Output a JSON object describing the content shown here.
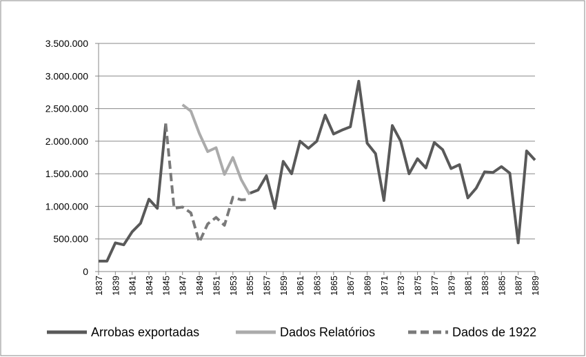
{
  "chart_data": {
    "type": "line",
    "x": [
      1837,
      1838,
      1839,
      1840,
      1841,
      1842,
      1843,
      1844,
      1845,
      1846,
      1847,
      1848,
      1849,
      1850,
      1851,
      1852,
      1853,
      1854,
      1855,
      1856,
      1857,
      1858,
      1859,
      1860,
      1861,
      1862,
      1863,
      1864,
      1865,
      1866,
      1867,
      1868,
      1869,
      1870,
      1871,
      1872,
      1873,
      1874,
      1875,
      1876,
      1877,
      1878,
      1879,
      1880,
      1881,
      1882,
      1883,
      1884,
      1885,
      1886,
      1887,
      1888,
      1889
    ],
    "xlim": [
      1837,
      1889
    ],
    "xticks": [
      1837,
      1839,
      1841,
      1843,
      1845,
      1847,
      1849,
      1851,
      1853,
      1855,
      1857,
      1859,
      1861,
      1863,
      1865,
      1867,
      1869,
      1871,
      1873,
      1875,
      1877,
      1879,
      1881,
      1883,
      1885,
      1887,
      1889
    ],
    "ylim": [
      0,
      3500000
    ],
    "yticks": [
      0,
      {
        "value": 500000,
        "label": "500.000"
      },
      {
        "value": 1000000,
        "label": "1.000.000"
      },
      {
        "value": 1500000,
        "label": "1.500.000"
      },
      {
        "value": 2000000,
        "label": "2.000.000"
      },
      {
        "value": 2500000,
        "label": "2.500.000"
      },
      {
        "value": 3000000,
        "label": "3.000.000"
      },
      {
        "value": 3500000,
        "label": "3.500.000"
      }
    ],
    "grid": true,
    "legend": "bottom",
    "series": [
      {
        "name": "Arrobas exportadas",
        "color": "#595959",
        "dashed": false,
        "values": [
          160000,
          160000,
          440000,
          410000,
          610000,
          740000,
          1110000,
          970000,
          2270000,
          null,
          null,
          null,
          null,
          null,
          null,
          null,
          null,
          null,
          1200000,
          1250000,
          1470000,
          970000,
          1690000,
          1500000,
          2000000,
          1890000,
          2000000,
          2400000,
          2110000,
          2170000,
          2220000,
          2920000,
          1970000,
          1810000,
          1090000,
          2240000,
          2000000,
          1500000,
          1730000,
          1590000,
          1980000,
          1870000,
          1580000,
          1640000,
          1130000,
          1280000,
          1530000,
          1520000,
          1610000,
          1510000,
          440000,
          1850000,
          1710000
        ]
      },
      {
        "name": "Dados Relatórios",
        "color": "#ababab",
        "dashed": false,
        "values": [
          null,
          null,
          null,
          null,
          null,
          null,
          null,
          null,
          null,
          null,
          2560000,
          2460000,
          2120000,
          1840000,
          1900000,
          1490000,
          1750000,
          1410000,
          1180000,
          null,
          null,
          null,
          null,
          null,
          null,
          null,
          null,
          null,
          null,
          null,
          null,
          null,
          null,
          null,
          null,
          null,
          null,
          null,
          null,
          null,
          null,
          null,
          null,
          null,
          null,
          null,
          null,
          null,
          null,
          null,
          null,
          null,
          null
        ]
      },
      {
        "name": "Dados de 1922",
        "color": "#7a7a7a",
        "dashed": true,
        "values": [
          null,
          null,
          null,
          null,
          null,
          null,
          null,
          null,
          2270000,
          970000,
          990000,
          900000,
          450000,
          730000,
          830000,
          710000,
          1140000,
          1100000,
          1110000,
          null,
          null,
          null,
          null,
          null,
          null,
          null,
          null,
          null,
          null,
          null,
          null,
          null,
          null,
          null,
          null,
          null,
          null,
          null,
          null,
          null,
          null,
          null,
          null,
          null,
          null,
          null,
          null,
          null,
          null,
          null,
          null,
          null,
          null
        ]
      }
    ]
  }
}
